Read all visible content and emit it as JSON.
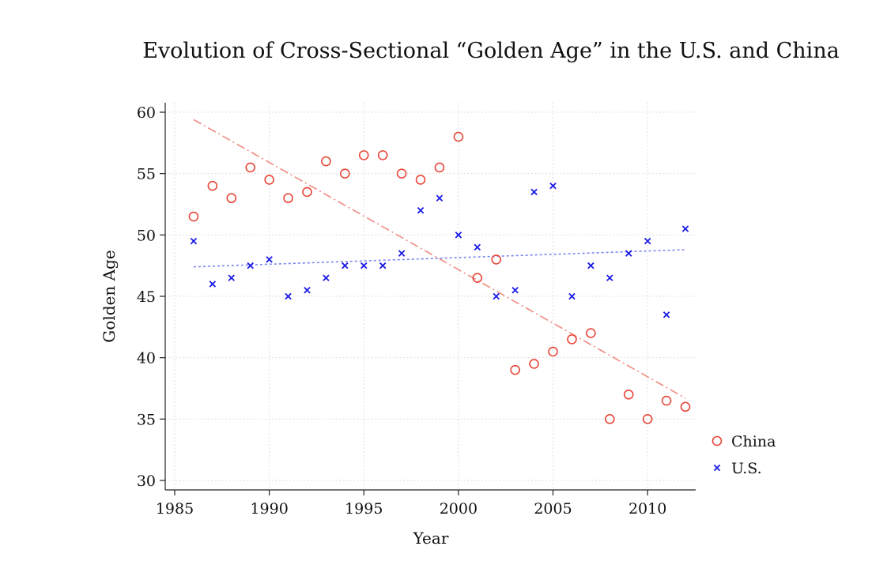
{
  "chart_data": {
    "type": "scatter",
    "title": "Evolution of Cross-Sectional “Golden Age” in the U.S. and China",
    "xlabel": "Year",
    "ylabel": "Golden Age",
    "xlim": [
      1985,
      2012
    ],
    "ylim": [
      30,
      60
    ],
    "x_ticks": [
      1985,
      1990,
      1995,
      2000,
      2005,
      2010
    ],
    "y_ticks": [
      30,
      35,
      40,
      45,
      50,
      55,
      60
    ],
    "grid": true,
    "legend_position": "right",
    "series": [
      {
        "name": "China",
        "marker": "circle",
        "color": "#e8483b",
        "x": [
          1986,
          1987,
          1988,
          1989,
          1990,
          1991,
          1992,
          1993,
          1994,
          1995,
          1996,
          1997,
          1998,
          1999,
          2000,
          2001,
          2002,
          2003,
          2004,
          2005,
          2006,
          2007,
          2008,
          2009,
          2010,
          2011,
          2012
        ],
        "y": [
          51.5,
          54,
          53,
          55.5,
          54.5,
          53,
          53.5,
          56,
          55,
          56.5,
          56.5,
          55,
          54.5,
          55.5,
          58,
          46.5,
          48,
          39,
          39.5,
          40.5,
          41.5,
          42,
          35,
          37,
          35,
          36.5,
          36
        ],
        "fit_line": {
          "x": [
            1986,
            2012
          ],
          "y": [
            59.4,
            36.7
          ],
          "style": "dash-dot",
          "color": "#f08a80"
        }
      },
      {
        "name": "U.S.",
        "marker": "x",
        "color": "#1a1ae6",
        "x": [
          1986,
          1987,
          1988,
          1989,
          1990,
          1991,
          1992,
          1993,
          1994,
          1995,
          1996,
          1997,
          1998,
          1999,
          2000,
          2001,
          2002,
          2003,
          2004,
          2005,
          2006,
          2007,
          2008,
          2009,
          2010,
          2011,
          2012
        ],
        "y": [
          49.5,
          46,
          46.5,
          47.5,
          48,
          45,
          45.5,
          46.5,
          47.5,
          47.5,
          47.5,
          48.5,
          52,
          53,
          50,
          49,
          45,
          45.5,
          53.5,
          54,
          45,
          47.5,
          46.5,
          48.5,
          49.5,
          43.5,
          50.5
        ],
        "fit_line": {
          "x": [
            1986,
            2012
          ],
          "y": [
            47.4,
            48.8
          ],
          "style": "dotted",
          "color": "#7a86f0"
        }
      }
    ]
  }
}
